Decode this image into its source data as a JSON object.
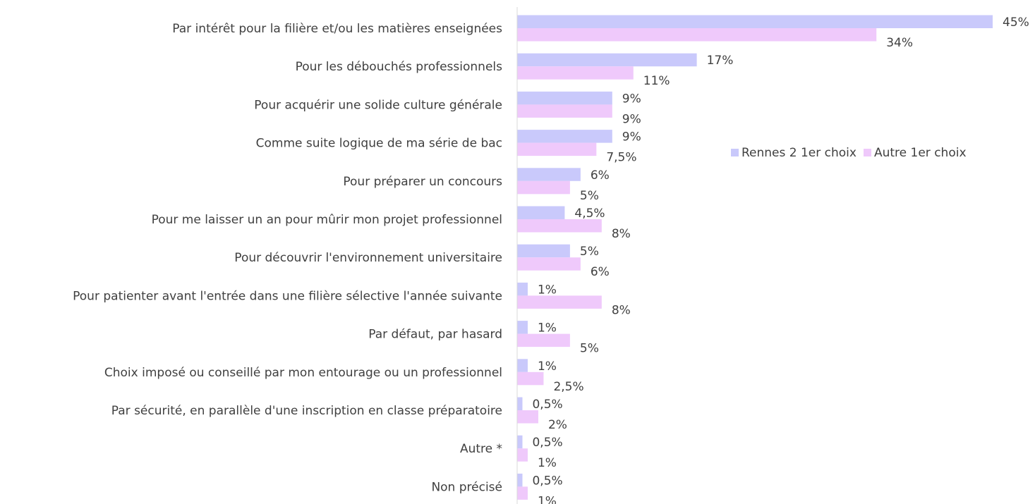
{
  "chart_data": {
    "type": "bar",
    "orientation": "horizontal",
    "categories": [
      "Par intérêt pour la filière et/ou les matières enseignées",
      "Pour les débouchés professionnels",
      "Pour acquérir une solide culture générale",
      "Comme suite logique de ma série de bac ",
      "Pour préparer un concours",
      "Pour me laisser un an  pour mûrir mon projet professionnel",
      "Pour découvrir l'environnement universitaire",
      "Pour patienter avant l'entrée dans une filière sélective l'année suivante ",
      "Par défaut, par hasard",
      "Choix imposé ou conseillé par mon entourage ou un professionnel",
      "Par sécurité, en parallèle  d'une inscription en classe  préparatoire",
      "Autre *",
      "Non précisé"
    ],
    "series": [
      {
        "name": "Rennes 2 1er choix",
        "color": "#c9c9fb",
        "values": [
          45,
          17,
          9,
          9,
          6,
          4.5,
          5,
          1,
          1,
          1,
          0.5,
          0.5,
          0.5
        ],
        "value_labels": [
          "45%",
          "17%",
          "9%",
          "9%",
          "6%",
          "4,5%",
          "5%",
          "1%",
          "1%",
          "1%",
          "0,5%",
          "0,5%",
          "0,5%"
        ]
      },
      {
        "name": "Autre 1er choix",
        "color": "#efc9fb",
        "values": [
          34,
          11,
          9,
          7.5,
          5,
          8,
          6,
          8,
          5,
          2.5,
          2,
          1,
          1
        ],
        "value_labels": [
          "34%",
          "11%",
          "9%",
          "7,5%",
          "5%",
          "8%",
          "6%",
          "8%",
          "5%",
          "2,5%",
          "2%",
          "1%",
          "1%"
        ]
      }
    ],
    "xlim": [
      0,
      45
    ],
    "legend": "right"
  }
}
